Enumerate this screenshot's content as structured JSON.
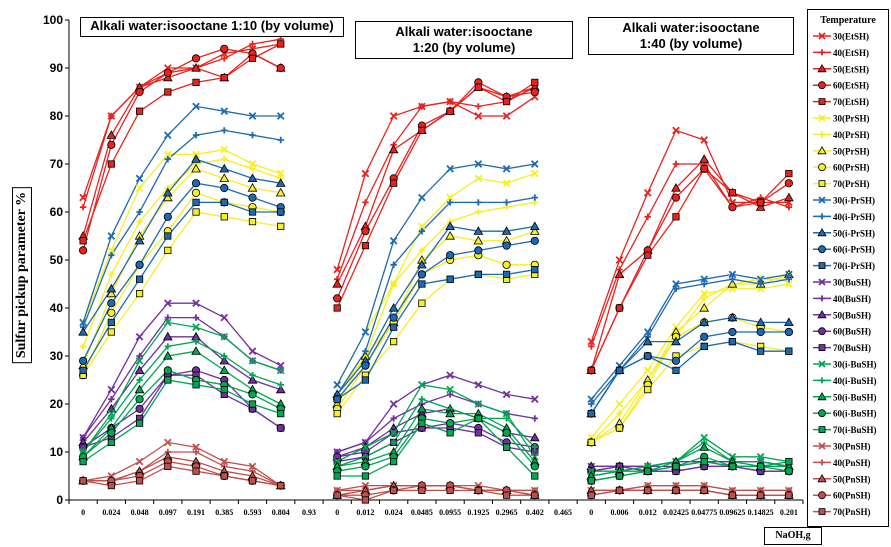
{
  "chart_data": {
    "type": "line",
    "ylabel": "Sulfur pickup parameter %",
    "xlabel": "NaOH,g",
    "ylim": [
      0,
      100
    ],
    "yticks": [
      0,
      10,
      20,
      30,
      40,
      50,
      60,
      70,
      80,
      90,
      100
    ],
    "legend_title": "Temperature",
    "legend_placement": "right",
    "grid": false,
    "categories": [
      "0",
      "0.024",
      "0.048",
      "0.097",
      "0.191",
      "0.385",
      "0.593",
      "0.804",
      "0.93",
      "0",
      "0.012",
      "0.024",
      "0.0485",
      "0.0955",
      "0.1925",
      "0.2965",
      "0.402",
      "0.465",
      "0",
      "0.006",
      "0.012",
      "0.02425",
      "0.04775",
      "0.09625",
      "0.14825",
      "0.201"
    ],
    "panels": [
      {
        "title": "Alkali water:isooctane 1:10  (by volume)",
        "start": 0,
        "count": 8
      },
      {
        "title": "Alkali water:isooctane\n1:20  (by volume)",
        "start": 9,
        "count": 8
      },
      {
        "title": "Alkali water:isooctane\n1:40  (by volume)",
        "start": 18,
        "count": 8
      }
    ],
    "series": [
      {
        "name": "30(EtSH)",
        "color": "#e8231f",
        "marker": "x",
        "values": [
          [
            63,
            80,
            86,
            90,
            90,
            93,
            94,
            95
          ],
          [
            48,
            68,
            80,
            82,
            83,
            80,
            80,
            84
          ],
          [
            33,
            50,
            64,
            77,
            75,
            62,
            62,
            62
          ]
        ]
      },
      {
        "name": "40(EtSH)",
        "color": "#e8231f",
        "marker": "plus",
        "values": [
          [
            61,
            80,
            86,
            89,
            90,
            92,
            95,
            96
          ],
          [
            46,
            62,
            74,
            82,
            83,
            82,
            83,
            86
          ],
          [
            32,
            48,
            59,
            70,
            70,
            61,
            63,
            61
          ]
        ]
      },
      {
        "name": "50(EtSH)",
        "color": "#e8231f",
        "marker": "triangle",
        "values": [
          [
            55,
            76,
            86,
            88,
            90,
            88,
            93,
            90
          ],
          [
            45,
            57,
            73,
            77,
            81,
            86,
            84,
            86
          ],
          [
            27,
            47,
            52,
            65,
            71,
            64,
            61,
            63
          ]
        ]
      },
      {
        "name": "60(EtSH)",
        "color": "#e8231f",
        "marker": "circle",
        "values": [
          [
            52,
            74,
            85,
            89,
            92,
            94,
            93,
            90
          ],
          [
            42,
            56,
            67,
            78,
            81,
            87,
            84,
            85
          ],
          [
            27,
            40,
            52,
            63,
            69,
            61,
            62,
            66
          ]
        ]
      },
      {
        "name": "70(EtSH)",
        "color": "#e8231f",
        "marker": "square",
        "values": [
          [
            54,
            70,
            81,
            85,
            87,
            88,
            92,
            95
          ],
          [
            40,
            53,
            66,
            77,
            81,
            86,
            83,
            87
          ],
          [
            27,
            40,
            51,
            59,
            69,
            64,
            62,
            68
          ]
        ]
      },
      {
        "name": "30(PrSH)",
        "color": "#f6ee26",
        "marker": "x",
        "values": [
          [
            37,
            52,
            65,
            72,
            72,
            73,
            70,
            68
          ],
          [
            24,
            35,
            45,
            57,
            63,
            67,
            66,
            68
          ],
          [
            13,
            20,
            27,
            36,
            43,
            44,
            44,
            45
          ]
        ]
      },
      {
        "name": "40(PrSH)",
        "color": "#f6ee26",
        "marker": "plus",
        "values": [
          [
            32,
            47,
            58,
            65,
            70,
            71,
            69,
            67
          ],
          [
            22,
            30,
            45,
            52,
            58,
            60,
            61,
            62
          ],
          [
            12,
            18,
            25,
            34,
            42,
            45,
            46,
            46
          ]
        ]
      },
      {
        "name": "50(PrSH)",
        "color": "#f6ee26",
        "marker": "triangle",
        "values": [
          [
            28,
            43,
            55,
            63,
            69,
            67,
            65,
            64
          ],
          [
            20,
            30,
            37,
            50,
            55,
            54,
            54,
            56
          ],
          [
            12,
            16,
            25,
            35,
            40,
            45,
            45,
            47
          ]
        ]
      },
      {
        "name": "60(PrSH)",
        "color": "#f6ee26",
        "marker": "circle",
        "values": [
          [
            26,
            39,
            49,
            56,
            64,
            62,
            61,
            60
          ],
          [
            19,
            28,
            37,
            47,
            50,
            51,
            49,
            49
          ],
          [
            12,
            15,
            24,
            34,
            37,
            38,
            36,
            35
          ]
        ]
      },
      {
        "name": "70(PrSH)",
        "color": "#f6ee26",
        "marker": "square",
        "values": [
          [
            26,
            35,
            43,
            52,
            60,
            59,
            58,
            57
          ],
          [
            18,
            26,
            33,
            41,
            46,
            47,
            46,
            47
          ],
          [
            12,
            15,
            23,
            30,
            32,
            33,
            32,
            31
          ]
        ]
      },
      {
        "name": "30(i-PrSH)",
        "color": "#1d6ab2",
        "marker": "x",
        "values": [
          [
            37,
            55,
            67,
            76,
            82,
            81,
            80,
            80
          ],
          [
            24,
            35,
            54,
            63,
            69,
            70,
            69,
            70
          ],
          [
            21,
            28,
            35,
            45,
            46,
            47,
            46,
            47
          ]
        ]
      },
      {
        "name": "40(i-PrSH)",
        "color": "#1d6ab2",
        "marker": "plus",
        "values": [
          [
            36,
            51,
            60,
            71,
            76,
            77,
            76,
            75
          ],
          [
            22,
            31,
            49,
            56,
            62,
            62,
            62,
            63
          ],
          [
            20,
            27,
            34,
            44,
            45,
            46,
            45,
            46
          ]
        ]
      },
      {
        "name": "50(i-PrSH)",
        "color": "#1d6ab2",
        "marker": "triangle",
        "values": [
          [
            35,
            44,
            54,
            64,
            71,
            69,
            67,
            66
          ],
          [
            22,
            29,
            40,
            49,
            57,
            56,
            56,
            57
          ],
          [
            18,
            27,
            33,
            33,
            37,
            38,
            37,
            37
          ]
        ]
      },
      {
        "name": "60(i-PrSH)",
        "color": "#1d6ab2",
        "marker": "circle",
        "values": [
          [
            29,
            41,
            49,
            59,
            66,
            65,
            63,
            61
          ],
          [
            21,
            28,
            38,
            47,
            51,
            52,
            53,
            54
          ],
          [
            18,
            27,
            30,
            29,
            34,
            35,
            35,
            35
          ]
        ]
      },
      {
        "name": "70(i-PrSH)",
        "color": "#1d6ab2",
        "marker": "square",
        "values": [
          [
            27,
            37,
            46,
            55,
            62,
            62,
            60,
            60
          ],
          [
            21,
            25,
            36,
            45,
            46,
            47,
            47,
            48
          ],
          [
            18,
            27,
            30,
            27,
            32,
            33,
            31,
            31
          ]
        ]
      },
      {
        "name": "30(BuSH)",
        "color": "#7030a0",
        "marker": "x",
        "values": [
          [
            13,
            23,
            34,
            41,
            41,
            38,
            31,
            28
          ],
          [
            10,
            12,
            20,
            24,
            26,
            24,
            22,
            21
          ],
          [
            7,
            7,
            7,
            8,
            8,
            8,
            8,
            7
          ]
        ]
      },
      {
        "name": "40(BuSH)",
        "color": "#7030a0",
        "marker": "plus",
        "values": [
          [
            13,
            21,
            30,
            38,
            38,
            34,
            29,
            27
          ],
          [
            10,
            12,
            17,
            20,
            22,
            20,
            18,
            17
          ],
          [
            7,
            7,
            7,
            8,
            8,
            8,
            8,
            7
          ]
        ]
      },
      {
        "name": "50(BuSH)",
        "color": "#7030a0",
        "marker": "triangle",
        "values": [
          [
            12,
            19,
            27,
            34,
            34,
            29,
            25,
            23
          ],
          [
            9,
            11,
            15,
            18,
            19,
            17,
            14,
            13
          ],
          [
            7,
            7,
            7,
            7,
            8,
            7,
            7,
            7
          ]
        ]
      },
      {
        "name": "60(BuSH)",
        "color": "#7030a0",
        "marker": "circle",
        "values": [
          [
            11,
            15,
            19,
            26,
            27,
            25,
            19,
            15
          ],
          [
            9,
            10,
            14,
            15,
            16,
            15,
            12,
            11
          ],
          [
            6,
            7,
            6,
            6,
            7,
            7,
            6,
            6
          ]
        ]
      },
      {
        "name": "70(BuSH)",
        "color": "#7030a0",
        "marker": "square",
        "values": [
          [
            11,
            13,
            17,
            26,
            26,
            22,
            19,
            15
          ],
          [
            8,
            9,
            12,
            15,
            15,
            14,
            11,
            10
          ],
          [
            6,
            7,
            6,
            6,
            7,
            7,
            6,
            6
          ]
        ]
      },
      {
        "name": "30(i-BuSH)",
        "color": "#00a651",
        "marker": "x",
        "values": [
          [
            10,
            18,
            29,
            37,
            36,
            34,
            29,
            27
          ],
          [
            8,
            11,
            14,
            24,
            23,
            20,
            18,
            9
          ],
          [
            6,
            6,
            7,
            8,
            13,
            9,
            9,
            8
          ]
        ]
      },
      {
        "name": "40(i-BuSH)",
        "color": "#00a651",
        "marker": "plus",
        "values": [
          [
            10,
            17,
            25,
            32,
            33,
            30,
            26,
            24
          ],
          [
            7,
            9,
            12,
            21,
            19,
            17,
            17,
            11
          ],
          [
            5,
            6,
            7,
            8,
            12,
            8,
            8,
            7
          ]
        ]
      },
      {
        "name": "50(i-BuSH)",
        "color": "#00a651",
        "marker": "triangle",
        "values": [
          [
            9,
            15,
            23,
            30,
            31,
            27,
            23,
            20
          ],
          [
            7,
            8,
            10,
            19,
            18,
            18,
            15,
            8
          ],
          [
            5,
            6,
            6,
            8,
            11,
            8,
            7,
            7
          ]
        ]
      },
      {
        "name": "60(i-BuSH)",
        "color": "#00a651",
        "marker": "circle",
        "values": [
          [
            9,
            14,
            21,
            27,
            25,
            24,
            22,
            19
          ],
          [
            6,
            7,
            9,
            17,
            16,
            17,
            14,
            7
          ],
          [
            4,
            5,
            6,
            7,
            9,
            7,
            7,
            6
          ]
        ]
      },
      {
        "name": "70(i-BuSH)",
        "color": "#00a651",
        "marker": "square",
        "values": [
          [
            8,
            12,
            16,
            25,
            24,
            23,
            20,
            18
          ],
          [
            5,
            5,
            8,
            16,
            14,
            17,
            11,
            5
          ],
          [
            4,
            5,
            6,
            7,
            8,
            7,
            7,
            8
          ]
        ]
      },
      {
        "name": "30(PnSH)",
        "color": "#c0504d",
        "marker": "x",
        "values": [
          [
            4,
            5,
            8,
            12,
            11,
            8,
            7,
            3
          ],
          [
            2,
            3,
            3,
            3,
            3,
            3,
            2,
            2
          ],
          [
            2,
            2,
            3,
            3,
            3,
            2,
            2,
            2
          ]
        ]
      },
      {
        "name": "40(PnSH)",
        "color": "#c0504d",
        "marker": "plus",
        "values": [
          [
            4,
            4,
            6,
            10,
            10,
            7,
            6,
            3
          ],
          [
            2,
            2,
            3,
            3,
            3,
            2,
            2,
            2
          ],
          [
            2,
            2,
            3,
            3,
            3,
            2,
            2,
            2
          ]
        ]
      },
      {
        "name": "50(PnSH)",
        "color": "#c0504d",
        "marker": "triangle",
        "values": [
          [
            4,
            4,
            6,
            9,
            8,
            6,
            5,
            3
          ],
          [
            1,
            2,
            3,
            3,
            3,
            2,
            2,
            1
          ],
          [
            2,
            2,
            2,
            2,
            2,
            1,
            1,
            1
          ]
        ]
      },
      {
        "name": "60(PnSH)",
        "color": "#c0504d",
        "marker": "circle",
        "values": [
          [
            4,
            4,
            5,
            8,
            7,
            5,
            4,
            3
          ],
          [
            1,
            1,
            2,
            3,
            3,
            2,
            2,
            1
          ],
          [
            1,
            2,
            2,
            2,
            2,
            1,
            1,
            1
          ]
        ]
      },
      {
        "name": "70(PnSH)",
        "color": "#c0504d",
        "marker": "square",
        "values": [
          [
            4,
            3,
            4,
            7,
            6,
            5,
            4,
            3
          ],
          [
            1,
            0,
            2,
            2,
            2,
            2,
            1,
            1
          ],
          [
            1,
            2,
            2,
            2,
            2,
            1,
            1,
            1
          ]
        ]
      }
    ]
  }
}
